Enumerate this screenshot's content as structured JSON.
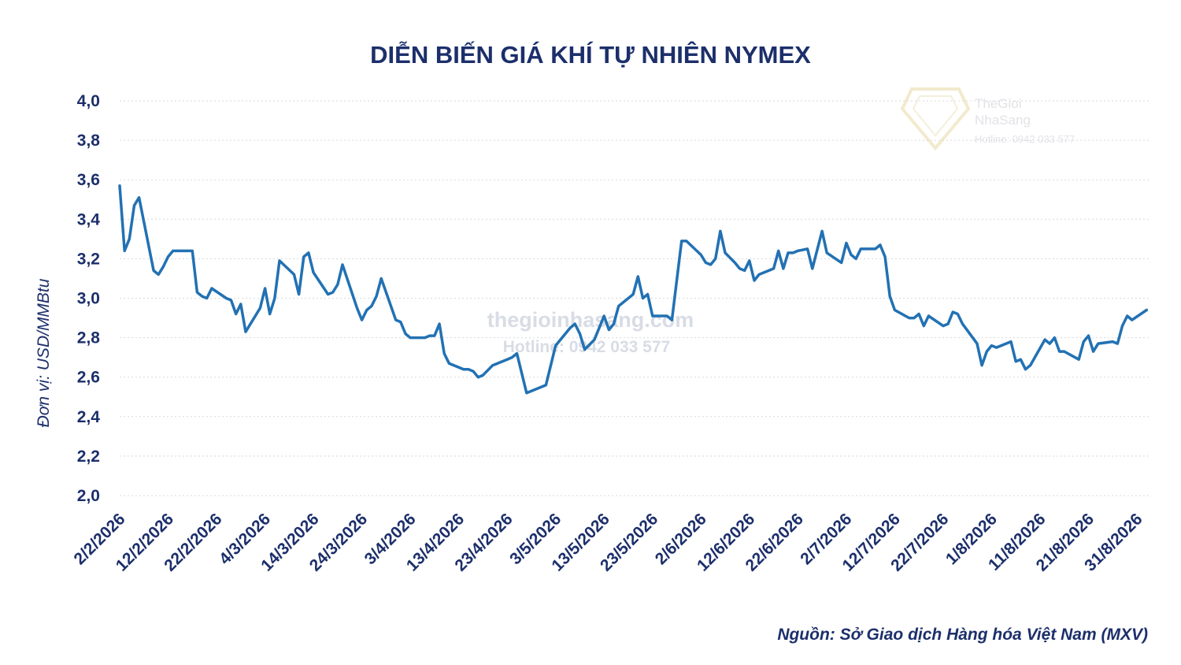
{
  "chart_data": {
    "type": "line",
    "title": "DIỄN BIẾN GIÁ KHÍ TỰ NHIÊN NYMEX",
    "ylabel": "Đơn vị: USD/MMBtu",
    "xlabel": "",
    "ylim": [
      2.0,
      4.0
    ],
    "y_ticks": [
      "2,0",
      "2,2",
      "2,4",
      "2,6",
      "2,8",
      "3,0",
      "3,2",
      "3,4",
      "3,6",
      "3,8",
      "4,0"
    ],
    "x_ticks": [
      {
        "label": "2/2/2026",
        "date": "2026-02-02"
      },
      {
        "label": "12/2/2026",
        "date": "2026-02-12"
      },
      {
        "label": "22/2/2026",
        "date": "2026-02-22"
      },
      {
        "label": "4/3/2026",
        "date": "2026-03-04"
      },
      {
        "label": "14/3/2026",
        "date": "2026-03-14"
      },
      {
        "label": "24/3/2026",
        "date": "2026-03-24"
      },
      {
        "label": "3/4/2026",
        "date": "2026-04-03"
      },
      {
        "label": "13/4/2026",
        "date": "2026-04-13"
      },
      {
        "label": "23/4/2026",
        "date": "2026-04-23"
      },
      {
        "label": "3/5/2026",
        "date": "2026-05-03"
      },
      {
        "label": "13/5/2026",
        "date": "2026-05-13"
      },
      {
        "label": "23/5/2026",
        "date": "2026-05-23"
      },
      {
        "label": "2/6/2026",
        "date": "2026-06-02"
      },
      {
        "label": "12/6/2026",
        "date": "2026-06-12"
      },
      {
        "label": "22/6/2026",
        "date": "2026-06-22"
      },
      {
        "label": "2/7/2026",
        "date": "2026-07-02"
      },
      {
        "label": "12/7/2026",
        "date": "2026-07-12"
      },
      {
        "label": "22/7/2026",
        "date": "2026-07-22"
      },
      {
        "label": "1/8/2026",
        "date": "2026-08-01"
      },
      {
        "label": "11/8/2026",
        "date": "2026-08-11"
      },
      {
        "label": "21/8/2026",
        "date": "2026-08-21"
      },
      {
        "label": "31/8/2026",
        "date": "2026-08-31"
      }
    ],
    "grid": true,
    "legend": "none",
    "line_color": "#2271b3",
    "text_color": "#1c2f6b",
    "series": [
      {
        "points": [
          [
            "2026-02-02",
            3.57
          ],
          [
            "2026-02-03",
            3.24
          ],
          [
            "2026-02-04",
            3.3
          ],
          [
            "2026-02-05",
            3.47
          ],
          [
            "2026-02-06",
            3.51
          ],
          [
            "2026-02-09",
            3.14
          ],
          [
            "2026-02-10",
            3.12
          ],
          [
            "2026-02-11",
            3.16
          ],
          [
            "2026-02-12",
            3.21
          ],
          [
            "2026-02-13",
            3.24
          ],
          [
            "2026-02-16",
            3.24
          ],
          [
            "2026-02-17",
            3.24
          ],
          [
            "2026-02-18",
            3.03
          ],
          [
            "2026-02-19",
            3.01
          ],
          [
            "2026-02-20",
            3.0
          ],
          [
            "2026-02-21",
            3.05
          ],
          [
            "2026-02-24",
            3.0
          ],
          [
            "2026-02-25",
            2.99
          ],
          [
            "2026-02-26",
            2.92
          ],
          [
            "2026-02-27",
            2.97
          ],
          [
            "2026-02-28",
            2.83
          ],
          [
            "2026-03-03",
            2.95
          ],
          [
            "2026-03-04",
            3.05
          ],
          [
            "2026-03-05",
            2.92
          ],
          [
            "2026-03-06",
            3.0
          ],
          [
            "2026-03-07",
            3.19
          ],
          [
            "2026-03-10",
            3.12
          ],
          [
            "2026-03-11",
            3.02
          ],
          [
            "2026-03-12",
            3.21
          ],
          [
            "2026-03-13",
            3.23
          ],
          [
            "2026-03-14",
            3.13
          ],
          [
            "2026-03-17",
            3.02
          ],
          [
            "2026-03-18",
            3.03
          ],
          [
            "2026-03-19",
            3.07
          ],
          [
            "2026-03-20",
            3.17
          ],
          [
            "2026-03-23",
            2.95
          ],
          [
            "2026-03-24",
            2.89
          ],
          [
            "2026-03-25",
            2.94
          ],
          [
            "2026-03-26",
            2.96
          ],
          [
            "2026-03-27",
            3.01
          ],
          [
            "2026-03-28",
            3.1
          ],
          [
            "2026-03-31",
            2.89
          ],
          [
            "2026-04-01",
            2.88
          ],
          [
            "2026-04-02",
            2.82
          ],
          [
            "2026-04-03",
            2.8
          ],
          [
            "2026-04-06",
            2.8
          ],
          [
            "2026-04-07",
            2.81
          ],
          [
            "2026-04-08",
            2.81
          ],
          [
            "2026-04-09",
            2.87
          ],
          [
            "2026-04-10",
            2.72
          ],
          [
            "2026-04-11",
            2.67
          ],
          [
            "2026-04-13",
            2.65
          ],
          [
            "2026-04-14",
            2.64
          ],
          [
            "2026-04-15",
            2.64
          ],
          [
            "2026-04-16",
            2.63
          ],
          [
            "2026-04-17",
            2.6
          ],
          [
            "2026-04-18",
            2.61
          ],
          [
            "2026-04-20",
            2.66
          ],
          [
            "2026-04-21",
            2.67
          ],
          [
            "2026-04-22",
            2.68
          ],
          [
            "2026-04-23",
            2.69
          ],
          [
            "2026-04-24",
            2.7
          ],
          [
            "2026-04-25",
            2.72
          ],
          [
            "2026-04-27",
            2.52
          ],
          [
            "2026-05-01",
            2.56
          ],
          [
            "2026-05-03",
            2.76
          ],
          [
            "2026-05-05",
            2.82
          ],
          [
            "2026-05-06",
            2.85
          ],
          [
            "2026-05-07",
            2.87
          ],
          [
            "2026-05-08",
            2.82
          ],
          [
            "2026-05-09",
            2.74
          ],
          [
            "2026-05-11",
            2.79
          ],
          [
            "2026-05-12",
            2.85
          ],
          [
            "2026-05-13",
            2.91
          ],
          [
            "2026-05-14",
            2.84
          ],
          [
            "2026-05-15",
            2.87
          ],
          [
            "2026-05-16",
            2.96
          ],
          [
            "2026-05-19",
            3.02
          ],
          [
            "2026-05-20",
            3.11
          ],
          [
            "2026-05-21",
            3.0
          ],
          [
            "2026-05-22",
            3.02
          ],
          [
            "2026-05-23",
            2.91
          ],
          [
            "2026-05-26",
            2.91
          ],
          [
            "2026-05-27",
            2.89
          ],
          [
            "2026-05-29",
            3.29
          ],
          [
            "2026-05-30",
            3.29
          ],
          [
            "2026-06-02",
            3.22
          ],
          [
            "2026-06-03",
            3.18
          ],
          [
            "2026-06-04",
            3.17
          ],
          [
            "2026-06-05",
            3.2
          ],
          [
            "2026-06-06",
            3.34
          ],
          [
            "2026-06-07",
            3.23
          ],
          [
            "2026-06-09",
            3.18
          ],
          [
            "2026-06-10",
            3.15
          ],
          [
            "2026-06-11",
            3.14
          ],
          [
            "2026-06-12",
            3.19
          ],
          [
            "2026-06-13",
            3.09
          ],
          [
            "2026-06-14",
            3.12
          ],
          [
            "2026-06-17",
            3.15
          ],
          [
            "2026-06-18",
            3.24
          ],
          [
            "2026-06-19",
            3.15
          ],
          [
            "2026-06-20",
            3.23
          ],
          [
            "2026-06-21",
            3.23
          ],
          [
            "2026-06-22",
            3.24
          ],
          [
            "2026-06-24",
            3.25
          ],
          [
            "2026-06-25",
            3.15
          ],
          [
            "2026-06-27",
            3.34
          ],
          [
            "2026-06-28",
            3.23
          ],
          [
            "2026-07-01",
            3.18
          ],
          [
            "2026-07-02",
            3.28
          ],
          [
            "2026-07-03",
            3.22
          ],
          [
            "2026-07-04",
            3.2
          ],
          [
            "2026-07-05",
            3.25
          ],
          [
            "2026-07-08",
            3.25
          ],
          [
            "2026-07-09",
            3.27
          ],
          [
            "2026-07-10",
            3.21
          ],
          [
            "2026-07-11",
            3.01
          ],
          [
            "2026-07-12",
            2.94
          ],
          [
            "2026-07-15",
            2.9
          ],
          [
            "2026-07-16",
            2.9
          ],
          [
            "2026-07-17",
            2.92
          ],
          [
            "2026-07-18",
            2.86
          ],
          [
            "2026-07-19",
            2.91
          ],
          [
            "2026-07-22",
            2.86
          ],
          [
            "2026-07-23",
            2.87
          ],
          [
            "2026-07-24",
            2.93
          ],
          [
            "2026-07-25",
            2.92
          ],
          [
            "2026-07-26",
            2.87
          ],
          [
            "2026-07-29",
            2.77
          ],
          [
            "2026-07-30",
            2.66
          ],
          [
            "2026-07-31",
            2.73
          ],
          [
            "2026-08-01",
            2.76
          ],
          [
            "2026-08-02",
            2.75
          ],
          [
            "2026-08-05",
            2.78
          ],
          [
            "2026-08-06",
            2.68
          ],
          [
            "2026-08-07",
            2.69
          ],
          [
            "2026-08-08",
            2.64
          ],
          [
            "2026-08-09",
            2.66
          ],
          [
            "2026-08-12",
            2.79
          ],
          [
            "2026-08-13",
            2.77
          ],
          [
            "2026-08-14",
            2.8
          ],
          [
            "2026-08-15",
            2.73
          ],
          [
            "2026-08-16",
            2.73
          ],
          [
            "2026-08-19",
            2.69
          ],
          [
            "2026-08-20",
            2.78
          ],
          [
            "2026-08-21",
            2.81
          ],
          [
            "2026-08-22",
            2.73
          ],
          [
            "2026-08-23",
            2.77
          ],
          [
            "2026-08-26",
            2.78
          ],
          [
            "2026-08-27",
            2.77
          ],
          [
            "2026-08-28",
            2.86
          ],
          [
            "2026-08-29",
            2.91
          ],
          [
            "2026-08-30",
            2.89
          ],
          [
            "2026-09-02",
            2.94
          ]
        ]
      }
    ],
    "source": "Nguồn: Sở Giao dịch Hàng hóa Việt Nam (MXV)"
  },
  "watermark": {
    "brand_line1": "TheGioi",
    "brand_line2": "NhaSang",
    "hotline_small": "Hotline: 0942 033 577",
    "site": "thegioinhasang.com",
    "hotline_center": "Hotline: 0942 033 577"
  }
}
